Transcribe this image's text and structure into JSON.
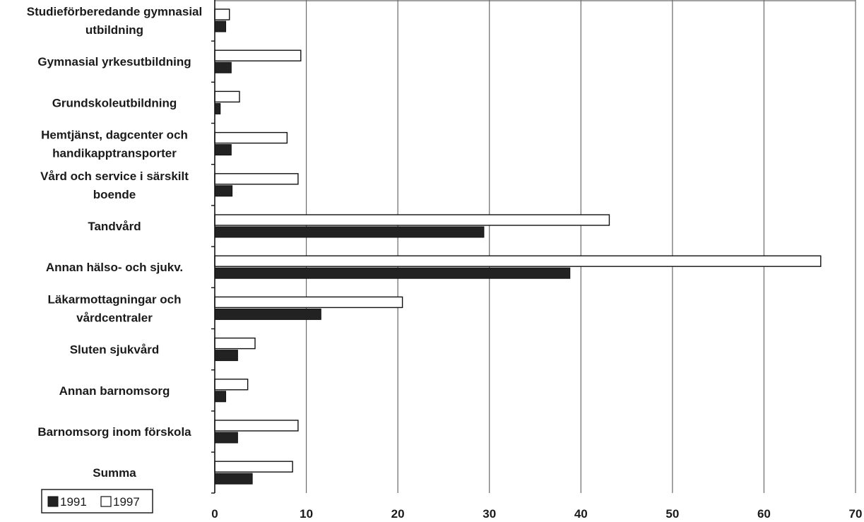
{
  "chart_data": {
    "type": "bar",
    "orientation": "horizontal",
    "categories": [
      "Studieförberedande gymnasial utbildning",
      "Gymnasial yrkesutbildning",
      "Grundskoleutbildning",
      "Hemtjänst, dagcenter och handikapptransporter",
      "Vård och service i särskilt boende",
      "Tandvård",
      "Annan hälso- och sjukv.",
      "Läkarmottagningar och vårdcentraler",
      "Sluten sjukvård",
      "Annan barnomsorg",
      "Barnomsorg inom förskola",
      "Summa"
    ],
    "category_lines": [
      [
        "Studieförberedande gymnasial",
        "utbildning"
      ],
      [
        "Gymnasial yrkesutbildning"
      ],
      [
        "Grundskoleutbildning"
      ],
      [
        "Hemtjänst, dagcenter och",
        "handikapptransporter"
      ],
      [
        "Vård och service i särskilt",
        "boende"
      ],
      [
        "Tandvård"
      ],
      [
        "Annan hälso- och sjukv."
      ],
      [
        "Läkarmottagningar och",
        "vårdcentraler"
      ],
      [
        "Sluten sjukvård"
      ],
      [
        "Annan barnomsorg"
      ],
      [
        "Barnomsorg inom förskola"
      ],
      [
        "Summa"
      ]
    ],
    "series": [
      {
        "name": "1991",
        "color": "#222222",
        "values": [
          1.2,
          1.8,
          0.6,
          1.8,
          1.9,
          29.4,
          38.8,
          11.6,
          2.5,
          1.2,
          2.5,
          4.1
        ]
      },
      {
        "name": "1997",
        "color": "#ffffff",
        "values": [
          1.6,
          9.4,
          2.7,
          7.9,
          9.1,
          43.1,
          66.2,
          20.5,
          4.4,
          3.6,
          9.1,
          8.5
        ]
      }
    ],
    "xlim": [
      0,
      70
    ],
    "xticks": [
      0,
      10,
      20,
      30,
      40,
      50,
      60,
      70
    ],
    "grid": "vertical",
    "legend": "bottom-left",
    "title": "",
    "xlabel": "",
    "ylabel": ""
  }
}
